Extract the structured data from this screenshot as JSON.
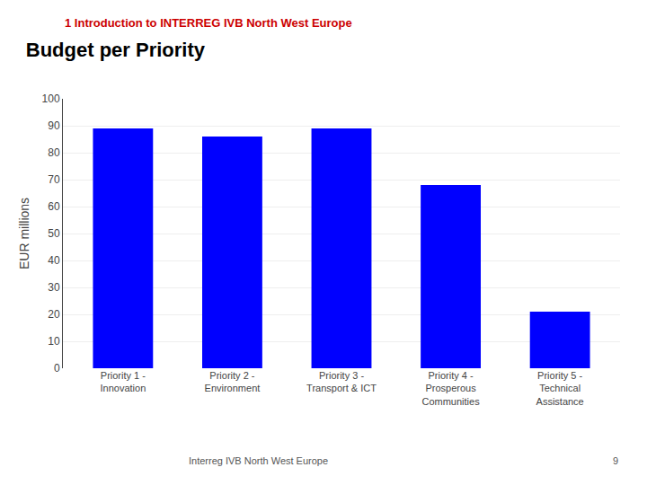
{
  "chart_data": {
    "type": "bar",
    "title": "Budget per Priority",
    "subtitle": "1 Introduction to INTERREG IVB North West Europe",
    "categories": [
      "Priority 1 -\nInnovation",
      "Priority 2 -\nEnvironment",
      "Priority 3 -\nTransport & ICT",
      "Priority 4 -\nProsperous\nCommunities",
      "Priority 5 -\nTechnical\nAssistance"
    ],
    "values": [
      89,
      86,
      89,
      68,
      21
    ],
    "color": "#0000FF",
    "ylabel": "EUR millions",
    "ylim": [
      0,
      100
    ],
    "yticks": [
      0,
      10,
      20,
      30,
      40,
      50,
      60,
      70,
      80,
      90,
      100
    ],
    "grid": true,
    "annotations": [
      "Interreg IVB North West Europe",
      "9"
    ]
  }
}
